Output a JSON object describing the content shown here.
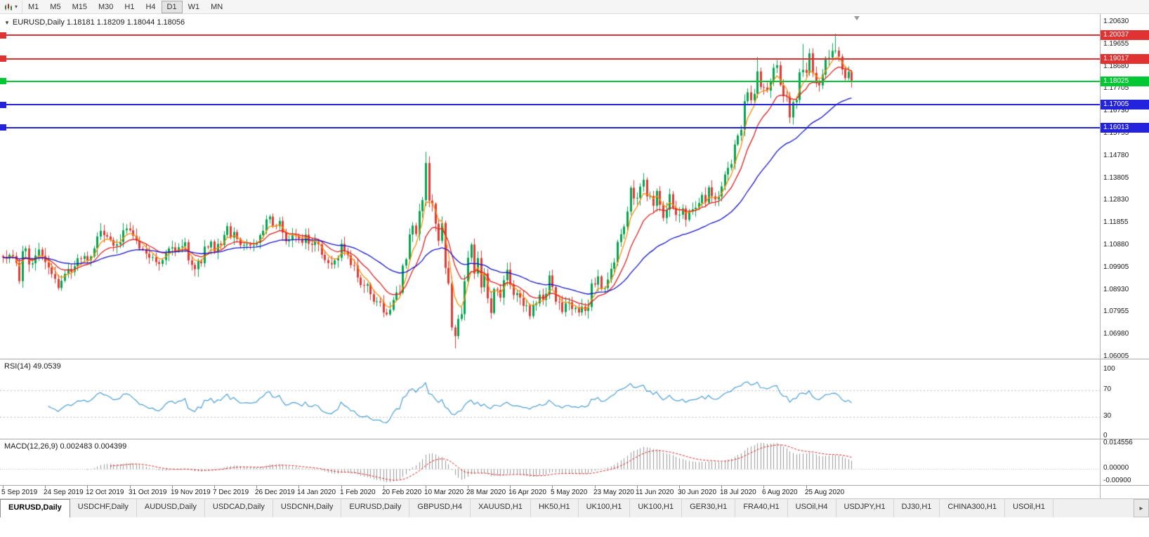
{
  "toolbar": {
    "timeframes": [
      "M1",
      "M5",
      "M15",
      "M30",
      "H1",
      "H4",
      "D1",
      "W1",
      "MN"
    ],
    "active_timeframe": "D1",
    "chart_icon": "candlestick-chart-icon",
    "caret": "▾"
  },
  "chart": {
    "title": "EURUSD,Daily 1.18181 1.18209 1.18044 1.18056",
    "symbol": "EURUSD",
    "period": "Daily",
    "ohlc_display": {
      "open": "1.18181",
      "high": "1.18209",
      "low": "1.18044",
      "close": "1.18056"
    }
  },
  "colors": {
    "up": "#00A651",
    "down": "#E53935",
    "ma_fast": "#FF8C00",
    "ma_mid": "#E02020",
    "ma_slow": "#1414CC",
    "rsi_line": "#4A9FD8",
    "rsi_level": "#BBBBBB",
    "macd_hist": "#999999",
    "macd_signal": "#E02020",
    "resistance": "#E03232",
    "pivot": "#00C832",
    "support": "#2323DD"
  },
  "hlines": [
    {
      "price": 1.20037,
      "label": "1.20037",
      "role": "resistance"
    },
    {
      "price": 1.19017,
      "label": "1.19017",
      "role": "resistance"
    },
    {
      "price": 1.18025,
      "label": "1.18025",
      "role": "pivot"
    },
    {
      "price": 1.17005,
      "label": "1.17005",
      "role": "support"
    },
    {
      "price": 1.16013,
      "label": "1.16013",
      "role": "support"
    }
  ],
  "price_axis": {
    "labels": [
      "1.20630",
      "1.19655",
      "1.18680",
      "1.17705",
      "1.16730",
      "1.15755",
      "1.14780",
      "1.13805",
      "1.12830",
      "1.11855",
      "1.10880",
      "1.09905",
      "1.08930",
      "1.07955",
      "1.06980",
      "1.06005"
    ]
  },
  "indicators": {
    "rsi": {
      "label": "RSI(14) 49.0539",
      "period": 14,
      "value": "49.0539",
      "levels": [
        70,
        30
      ],
      "axis_labels": [
        "100",
        "70",
        "30",
        "0"
      ]
    },
    "macd": {
      "label": "MACD(12,26,9) 0.002483 0.004399",
      "fast": 12,
      "slow": 26,
      "signal": 9,
      "value_main": "0.002483",
      "value_signal": "0.004399",
      "axis_labels": [
        "0.014556",
        "0.00000",
        "-0.00900"
      ]
    }
  },
  "time_axis": {
    "labels": [
      "5 Sep 2019",
      "24 Sep 2019",
      "12 Oct 2019",
      "31 Oct 2019",
      "19 Nov 2019",
      "7 Dec 2019",
      "26 Dec 2019",
      "14 Jan 2020",
      "1 Feb 2020",
      "20 Feb 2020",
      "10 Mar 2020",
      "28 Mar 2020",
      "16 Apr 2020",
      "5 May 2020",
      "23 May 2020",
      "11 Jun 2020",
      "30 Jun 2020",
      "18 Jul 2020",
      "6 Aug 2020",
      "25 Aug 2020"
    ],
    "bars_per_label": 13
  },
  "chart_data": {
    "type": "candlestick",
    "symbol": "EURUSD",
    "timeframe": "Daily",
    "title": "EURUSD,Daily",
    "ylim": [
      1.06005,
      1.2063
    ],
    "first_bar_date": "5 Sep 2019",
    "last_bar_date": "8 Sep 2020",
    "closes": [
      1.1033,
      1.1028,
      1.1045,
      1.104,
      1.1009,
      1.093,
      1.1061,
      1.1073,
      1.1003,
      1.1008,
      1.1042,
      1.1068,
      1.1041,
      1.1013,
      1.099,
      1.0961,
      1.094,
      1.09,
      1.0932,
      1.0962,
      1.0983,
      1.097,
      1.0995,
      1.103,
      1.1027,
      1.104,
      1.1021,
      1.1038,
      1.1073,
      1.1125,
      1.115,
      1.1131,
      1.1125,
      1.111,
      1.1085,
      1.1091,
      1.1101,
      1.1152,
      1.116,
      1.1152,
      1.1128,
      1.1107,
      1.1072,
      1.1068,
      1.105,
      1.1032,
      1.1035,
      1.1013,
      1.1005,
      1.1022,
      1.1052,
      1.1073,
      1.1078,
      1.106,
      1.1078,
      1.1082,
      1.11,
      1.1021,
      1.1001,
      1.0982,
      1.1018,
      1.1008,
      1.1081,
      1.1077,
      1.1103,
      1.106,
      1.1093,
      1.1088,
      1.1132,
      1.117,
      1.112,
      1.1145,
      1.1115,
      1.1087,
      1.1088,
      1.1091,
      1.1086,
      1.1089,
      1.1097,
      1.1131,
      1.115,
      1.12,
      1.1212,
      1.1172,
      1.117,
      1.1193,
      1.1143,
      1.1104,
      1.1111,
      1.113,
      1.1128,
      1.1115,
      1.1097,
      1.1133,
      1.1093,
      1.1088,
      1.1104,
      1.1091,
      1.1045,
      1.1022,
      1.1009,
      1.1003,
      1.1021,
      1.1032,
      1.1093,
      1.106,
      1.1043,
      1.1,
      1.0998,
      1.0946,
      1.0913,
      1.091,
      1.0917,
      1.0873,
      1.084,
      1.0842,
      1.0837,
      1.0793,
      1.0785,
      1.0805,
      1.0848,
      1.0881,
      1.088,
      1.0998,
      1.1026,
      1.1134,
      1.1173,
      1.1136,
      1.1236,
      1.1284,
      1.1446,
      1.1282,
      1.1268,
      1.1181,
      1.1106,
      1.1184,
      1.0988,
      1.092,
      1.0728,
      1.069,
      1.0765,
      1.0786,
      1.093,
      1.1032,
      1.109,
      1.0963,
      1.1031,
      1.0903,
      1.0964,
      1.0855,
      1.0791,
      1.0896,
      1.0892,
      1.0858,
      1.0934,
      1.098,
      1.0914,
      1.0869,
      1.0878,
      1.0858,
      1.0822,
      1.0824,
      1.0777,
      1.0825,
      1.0833,
      1.0871,
      1.0848,
      1.0875,
      1.0955,
      1.0904,
      1.084,
      1.0837,
      1.0795,
      1.0833,
      1.0838,
      1.0808,
      1.0813,
      1.0793,
      1.0819,
      1.08,
      1.0817,
      1.092,
      1.0915,
      1.0951,
      1.0898,
      1.09,
      1.0937,
      1.0984,
      1.1012,
      1.1101,
      1.1135,
      1.1168,
      1.1234,
      1.1338,
      1.1291,
      1.1294,
      1.1343,
      1.1373,
      1.13,
      1.1302,
      1.1259,
      1.1324,
      1.1263,
      1.1206,
      1.1242,
      1.131,
      1.1251,
      1.1219,
      1.122,
      1.1248,
      1.1198,
      1.1234,
      1.1244,
      1.1251,
      1.1271,
      1.1307,
      1.1273,
      1.134,
      1.1301,
      1.1287,
      1.13,
      1.1344,
      1.1396,
      1.1425,
      1.1442,
      1.1527,
      1.1566,
      1.1591,
      1.1716,
      1.1755,
      1.172,
      1.1748,
      1.1846,
      1.1778,
      1.1776,
      1.1762,
      1.1803,
      1.1862,
      1.1873,
      1.1787,
      1.1738,
      1.1737,
      1.1645,
      1.1712,
      1.1721,
      1.1842,
      1.1853,
      1.184,
      1.1925,
      1.184,
      1.1795,
      1.1785,
      1.1832,
      1.1905,
      1.1906,
      1.1936,
      1.1937,
      1.1911,
      1.1854,
      1.1817,
      1.1845,
      1.18056
    ],
    "extremes": {
      "118": {
        "l": 1.0778
      },
      "130": {
        "h": 1.1495
      },
      "139": {
        "l": 1.0636
      },
      "232": {
        "h": 1.1909
      },
      "246": {
        "h": 1.1966
      },
      "256": {
        "h": 1.2011
      }
    },
    "overlays": [
      {
        "name": "ema-fast",
        "period": 5,
        "color_key": "ma_fast"
      },
      {
        "name": "ema-mid",
        "period": 13,
        "color_key": "ma_mid"
      },
      {
        "name": "ema-slow",
        "period": 40,
        "color_key": "ma_slow"
      }
    ]
  },
  "tabs": {
    "items": [
      "EURUSD,Daily",
      "USDCHF,Daily",
      "AUDUSD,Daily",
      "USDCAD,Daily",
      "USDCNH,Daily",
      "EURUSD,Daily",
      "GBPUSD,H4",
      "XAUUSD,H1",
      "HK50,H1",
      "UK100,H1",
      "UK100,H1",
      "GER30,H1",
      "FRA40,H1",
      "USOil,H4",
      "USDJPY,H1",
      "DJ30,H1",
      "CHINA300,H1",
      "USOil,H1"
    ],
    "active_index": 0,
    "scroll_right_icon": "▸"
  }
}
